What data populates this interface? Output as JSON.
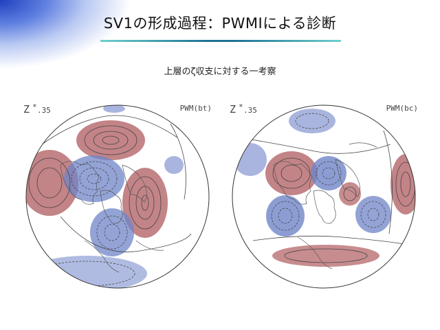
{
  "slide": {
    "title": "SV1の形成過程：PWMIによる診断",
    "subtitle": "上層のζ収支に対する一考察"
  },
  "panels": [
    {
      "variable_label": "Z",
      "star": "*",
      "level": ".35",
      "panel_tag": "PWM(bt)"
    },
    {
      "variable_label": "Z",
      "star": "*",
      "level": ".35",
      "panel_tag": "PWM(bc)"
    }
  ],
  "colors": {
    "positive_anomaly": "#b96f72",
    "negative_anomaly": "#6f84c8",
    "contour": "#444444",
    "title_rule": "#1e6f96"
  }
}
